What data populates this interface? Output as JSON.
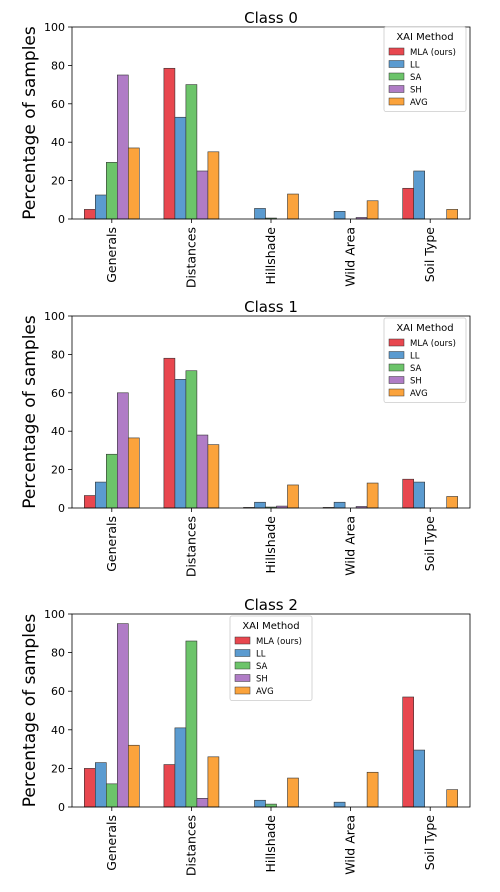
{
  "chart_data": [
    {
      "type": "bar",
      "title": "Class 0",
      "ylabel": "Percentage of samples",
      "xlabel": "",
      "ylim": [
        0,
        100
      ],
      "yticks": [
        0,
        20,
        40,
        60,
        80,
        100
      ],
      "categories": [
        "Generals",
        "Distances",
        "Hillshade",
        "Wild Area",
        "Soil Type"
      ],
      "legend": {
        "title": "XAI Method",
        "placement": "top-right"
      },
      "series": [
        {
          "name": "MLA (ours)",
          "color": "#e8474f",
          "values": [
            5,
            78.5,
            0,
            0,
            16
          ]
        },
        {
          "name": "LL",
          "color": "#5b9bd0",
          "values": [
            12.5,
            53,
            5.5,
            4,
            25
          ]
        },
        {
          "name": "SA",
          "color": "#6cc46a",
          "values": [
            29.5,
            70,
            0.5,
            0,
            0
          ]
        },
        {
          "name": "SH",
          "color": "#b07cc6",
          "values": [
            75,
            25,
            0,
            0.8,
            0
          ]
        },
        {
          "name": "AVG",
          "color": "#fba33c",
          "values": [
            37,
            35,
            13,
            9.5,
            5
          ]
        }
      ]
    },
    {
      "type": "bar",
      "title": "Class 1",
      "ylabel": "Percentage of samples",
      "xlabel": "",
      "ylim": [
        0,
        100
      ],
      "yticks": [
        0,
        20,
        40,
        60,
        80,
        100
      ],
      "categories": [
        "Generals",
        "Distances",
        "Hillshade",
        "Wild Area",
        "Soil Type"
      ],
      "legend": {
        "title": "XAI Method",
        "placement": "top-right"
      },
      "series": [
        {
          "name": "MLA (ours)",
          "color": "#e8474f",
          "values": [
            6.5,
            78,
            0.3,
            0.3,
            15
          ]
        },
        {
          "name": "LL",
          "color": "#5b9bd0",
          "values": [
            13.5,
            67,
            3,
            3,
            13.5
          ]
        },
        {
          "name": "SA",
          "color": "#6cc46a",
          "values": [
            28,
            71.5,
            0.5,
            0,
            0
          ]
        },
        {
          "name": "SH",
          "color": "#b07cc6",
          "values": [
            60,
            38,
            1,
            0.8,
            0
          ]
        },
        {
          "name": "AVG",
          "color": "#fba33c",
          "values": [
            36.5,
            33,
            12,
            13,
            6
          ]
        }
      ]
    },
    {
      "type": "bar",
      "title": "Class 2",
      "ylabel": "Percentage of samples",
      "xlabel": "",
      "ylim": [
        0,
        100
      ],
      "yticks": [
        0,
        20,
        40,
        60,
        80,
        100
      ],
      "categories": [
        "Generals",
        "Distances",
        "Hillshade",
        "Wild Area",
        "Soil Type"
      ],
      "legend": {
        "title": "XAI Method",
        "placement": "top-center"
      },
      "series": [
        {
          "name": "MLA (ours)",
          "color": "#e8474f",
          "values": [
            20,
            22,
            0,
            0,
            57
          ]
        },
        {
          "name": "LL",
          "color": "#5b9bd0",
          "values": [
            23,
            41,
            3.5,
            2.5,
            29.5
          ]
        },
        {
          "name": "SA",
          "color": "#6cc46a",
          "values": [
            12,
            86,
            1.5,
            0,
            0
          ]
        },
        {
          "name": "SH",
          "color": "#b07cc6",
          "values": [
            95,
            4.5,
            0,
            0,
            0
          ]
        },
        {
          "name": "AVG",
          "color": "#fba33c",
          "values": [
            32,
            26,
            15,
            18,
            9
          ]
        }
      ]
    }
  ]
}
